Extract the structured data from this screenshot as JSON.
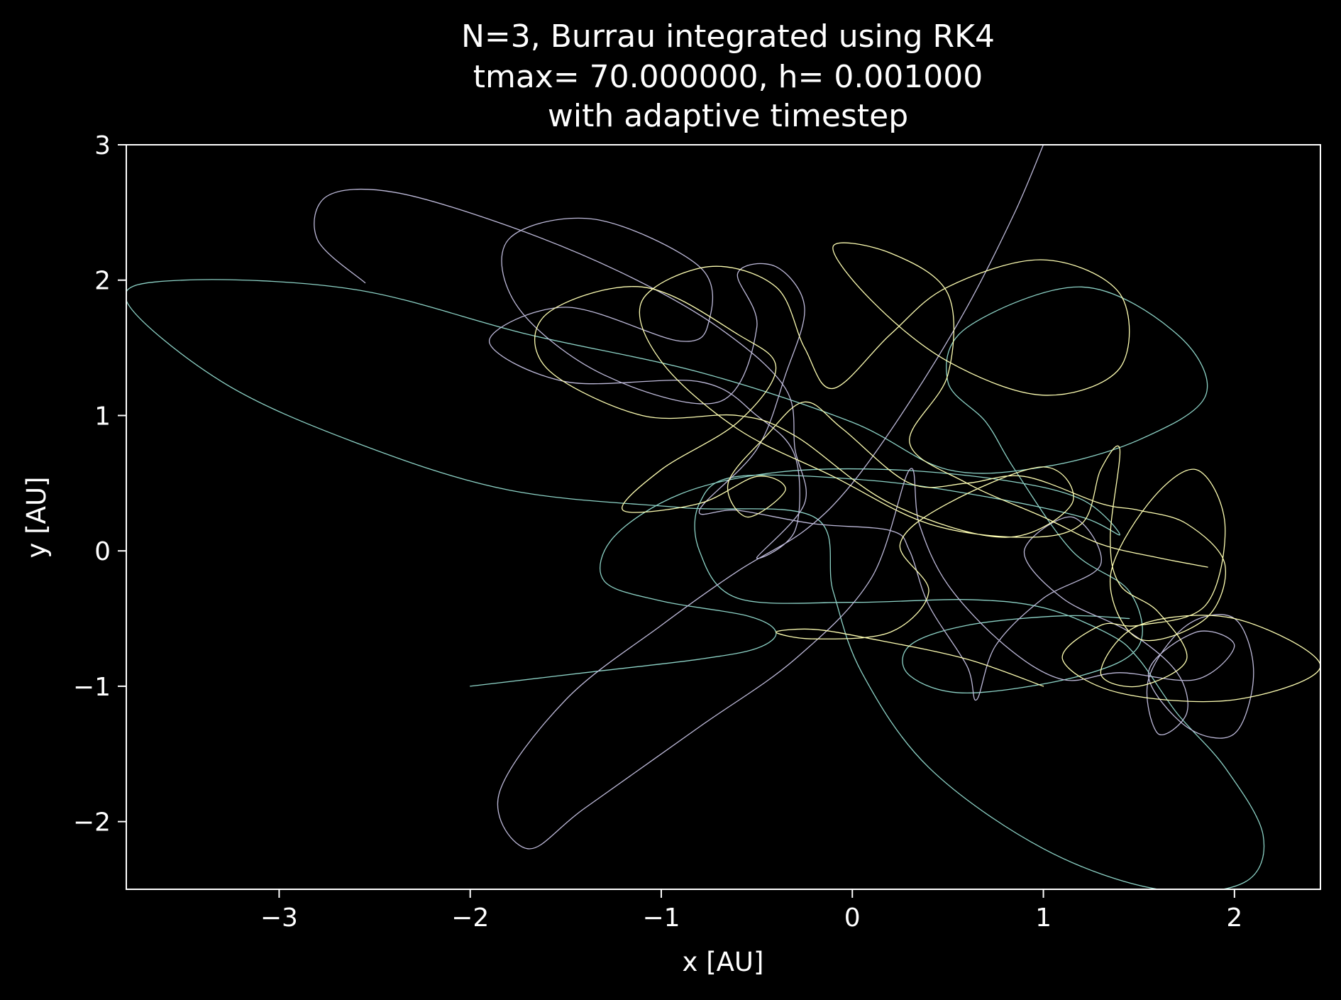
{
  "chart_data": {
    "type": "line",
    "title_lines": [
      "N=3, Burrau integrated using RK4",
      "tmax= 70.000000, h= 0.001000",
      "with adaptive timestep"
    ],
    "xlabel": "x [AU]",
    "ylabel": "y [AU]",
    "xlim": [
      -3.8,
      2.45
    ],
    "ylim": [
      -2.5,
      3.0
    ],
    "xticks": [
      -3,
      -2,
      -1,
      0,
      1,
      2
    ],
    "yticks": [
      -2,
      -1,
      0,
      1,
      2,
      3
    ],
    "xtick_labels": [
      "−3",
      "−2",
      "−1",
      "0",
      "1",
      "2"
    ],
    "ytick_labels": [
      "−2",
      "−1",
      "0",
      "1",
      "2",
      "3"
    ],
    "grid": false,
    "legend": "none",
    "background": "#000000",
    "foreground": "#ffffff",
    "series": [
      {
        "color": "#8dd3c7",
        "points": [
          [
            -2.0,
            -1.0
          ],
          [
            -1.4,
            -0.9
          ],
          [
            -0.8,
            -0.8
          ],
          [
            -0.5,
            -0.72
          ],
          [
            -0.4,
            -0.6
          ],
          [
            -0.55,
            -0.48
          ],
          [
            -1.0,
            -0.37
          ],
          [
            -1.3,
            -0.22
          ],
          [
            -1.25,
            0.1
          ],
          [
            -0.9,
            0.42
          ],
          [
            -0.4,
            0.58
          ],
          [
            0.2,
            0.6
          ],
          [
            0.8,
            0.52
          ],
          [
            1.2,
            0.38
          ],
          [
            1.4,
            0.12
          ],
          [
            1.2,
            0.25
          ],
          [
            0.7,
            0.4
          ],
          [
            0.1,
            0.52
          ],
          [
            -0.6,
            0.55
          ],
          [
            -0.8,
            0.35
          ],
          [
            -0.8,
            0.0
          ],
          [
            -0.6,
            -0.35
          ],
          [
            0.0,
            -0.38
          ],
          [
            0.6,
            -0.36
          ],
          [
            1.0,
            -0.42
          ],
          [
            1.35,
            -0.62
          ],
          [
            1.5,
            -0.8
          ],
          [
            1.7,
            -1.2
          ],
          [
            1.95,
            -1.6
          ],
          [
            2.15,
            -2.1
          ],
          [
            2.05,
            -2.45
          ],
          [
            1.6,
            -2.5
          ],
          [
            1.0,
            -2.2
          ],
          [
            0.4,
            -1.6
          ],
          [
            0.05,
            -0.9
          ],
          [
            -0.1,
            -0.3
          ],
          [
            -0.2,
            0.25
          ],
          [
            -0.9,
            0.32
          ],
          [
            -1.8,
            0.45
          ],
          [
            -2.6,
            0.8
          ],
          [
            -3.3,
            1.25
          ],
          [
            -3.8,
            1.85
          ],
          [
            -3.5,
            2.0
          ],
          [
            -2.6,
            1.93
          ],
          [
            -1.7,
            1.6
          ],
          [
            -0.8,
            1.32
          ],
          [
            0.0,
            0.95
          ],
          [
            0.5,
            0.6
          ],
          [
            1.0,
            0.62
          ],
          [
            1.5,
            0.82
          ],
          [
            1.85,
            1.15
          ],
          [
            1.7,
            1.6
          ],
          [
            1.2,
            1.95
          ],
          [
            0.6,
            1.65
          ],
          [
            0.5,
            1.25
          ],
          [
            0.7,
            0.95
          ],
          [
            0.85,
            0.6
          ],
          [
            1.15,
            0.0
          ],
          [
            1.45,
            -0.3
          ],
          [
            1.5,
            -0.7
          ],
          [
            1.2,
            -0.92
          ],
          [
            0.6,
            -1.05
          ],
          [
            0.3,
            -0.92
          ],
          [
            0.3,
            -0.7
          ],
          [
            0.6,
            -0.55
          ],
          [
            1.1,
            -0.48
          ],
          [
            1.45,
            -0.5
          ]
        ]
      },
      {
        "color": "#bebada",
        "points": [
          [
            -2.55,
            1.98
          ],
          [
            -2.8,
            2.3
          ],
          [
            -2.75,
            2.62
          ],
          [
            -2.4,
            2.65
          ],
          [
            -1.8,
            2.4
          ],
          [
            -1.2,
            2.05
          ],
          [
            -0.7,
            1.65
          ],
          [
            -0.35,
            1.2
          ],
          [
            -0.3,
            0.75
          ],
          [
            -0.25,
            0.35
          ],
          [
            -0.5,
            -0.05
          ],
          [
            -0.3,
            0.15
          ],
          [
            -0.3,
            0.7
          ],
          [
            -0.5,
            1.0
          ],
          [
            -0.8,
            1.25
          ],
          [
            -1.5,
            1.25
          ],
          [
            -1.9,
            1.55
          ],
          [
            -1.5,
            1.8
          ],
          [
            -0.9,
            1.55
          ],
          [
            -0.75,
            1.7
          ],
          [
            -0.8,
            2.1
          ],
          [
            -1.35,
            2.45
          ],
          [
            -1.8,
            2.3
          ],
          [
            -1.75,
            1.8
          ],
          [
            -1.3,
            1.3
          ],
          [
            -0.7,
            1.1
          ],
          [
            -0.5,
            1.65
          ],
          [
            -0.6,
            2.05
          ],
          [
            -0.4,
            2.1
          ],
          [
            -0.25,
            1.8
          ],
          [
            -0.35,
            1.3
          ],
          [
            -0.5,
            0.75
          ],
          [
            -0.8,
            0.3
          ],
          [
            -0.6,
            0.3
          ],
          [
            -0.2,
            0.2
          ],
          [
            0.2,
            0.15
          ],
          [
            0.3,
            0.0
          ],
          [
            0.4,
            -0.4
          ],
          [
            0.6,
            -0.85
          ],
          [
            0.65,
            -1.1
          ],
          [
            0.75,
            -0.7
          ],
          [
            1.0,
            -0.35
          ],
          [
            1.3,
            -0.1
          ],
          [
            1.15,
            0.25
          ],
          [
            0.9,
            0.0
          ],
          [
            1.1,
            -0.35
          ],
          [
            1.45,
            -0.6
          ],
          [
            1.7,
            -0.9
          ],
          [
            1.75,
            -1.2
          ],
          [
            1.6,
            -1.35
          ],
          [
            1.55,
            -0.95
          ],
          [
            1.75,
            -0.55
          ],
          [
            2.0,
            -0.5
          ],
          [
            2.1,
            -0.9
          ],
          [
            2.0,
            -1.35
          ],
          [
            1.75,
            -1.3
          ],
          [
            1.55,
            -0.9
          ],
          [
            1.8,
            -0.6
          ],
          [
            2.0,
            -0.7
          ],
          [
            1.8,
            -0.95
          ],
          [
            1.4,
            -0.9
          ],
          [
            1.1,
            -0.95
          ],
          [
            0.8,
            -0.7
          ],
          [
            0.5,
            -0.25
          ],
          [
            0.35,
            0.2
          ],
          [
            0.3,
            0.6
          ],
          [
            0.1,
            -0.2
          ],
          [
            -0.3,
            -0.8
          ],
          [
            -0.8,
            -1.3
          ],
          [
            -1.4,
            -1.9
          ],
          [
            -1.7,
            -2.2
          ],
          [
            -1.85,
            -1.8
          ],
          [
            -1.5,
            -1.1
          ],
          [
            -1.0,
            -0.55
          ],
          [
            -0.6,
            -0.15
          ],
          [
            -0.25,
            0.15
          ],
          [
            0.0,
            0.5
          ],
          [
            0.3,
            1.1
          ],
          [
            0.6,
            1.8
          ],
          [
            0.85,
            2.5
          ],
          [
            1.0,
            3.0
          ]
        ]
      },
      {
        "color": "#ffffb3",
        "points": [
          [
            1.0,
            -1.0
          ],
          [
            0.6,
            -0.8
          ],
          [
            0.1,
            -0.65
          ],
          [
            -0.2,
            -0.58
          ],
          [
            -0.4,
            -0.6
          ],
          [
            -0.2,
            -0.65
          ],
          [
            0.2,
            -0.6
          ],
          [
            0.4,
            -0.3
          ],
          [
            0.25,
            0.05
          ],
          [
            0.5,
            0.35
          ],
          [
            1.0,
            0.62
          ],
          [
            1.15,
            0.35
          ],
          [
            0.8,
            0.1
          ],
          [
            0.2,
            0.35
          ],
          [
            -0.3,
            0.85
          ],
          [
            -0.6,
            1.0
          ],
          [
            -1.1,
            1.0
          ],
          [
            -1.6,
            1.35
          ],
          [
            -1.6,
            1.75
          ],
          [
            -1.1,
            1.95
          ],
          [
            -0.6,
            1.6
          ],
          [
            -0.4,
            1.35
          ],
          [
            -0.6,
            0.95
          ],
          [
            -1.0,
            0.6
          ],
          [
            -1.2,
            0.3
          ],
          [
            -0.8,
            0.35
          ],
          [
            -0.5,
            0.55
          ],
          [
            -0.35,
            0.45
          ],
          [
            -0.55,
            0.25
          ],
          [
            -0.65,
            0.5
          ],
          [
            -0.45,
            0.85
          ],
          [
            -0.25,
            1.1
          ],
          [
            -0.05,
            0.9
          ],
          [
            0.3,
            0.5
          ],
          [
            0.6,
            0.5
          ],
          [
            0.9,
            0.55
          ],
          [
            1.3,
            0.35
          ],
          [
            1.5,
            0.3
          ],
          [
            1.75,
            0.2
          ],
          [
            1.95,
            -0.1
          ],
          [
            1.85,
            -0.5
          ],
          [
            1.5,
            -0.65
          ],
          [
            1.35,
            -0.2
          ],
          [
            1.55,
            0.35
          ],
          [
            1.8,
            0.6
          ],
          [
            1.95,
            0.2
          ],
          [
            1.85,
            -0.4
          ],
          [
            1.5,
            -0.55
          ],
          [
            1.3,
            -0.55
          ],
          [
            1.1,
            -0.8
          ],
          [
            1.4,
            -1.05
          ],
          [
            2.0,
            -1.1
          ],
          [
            2.45,
            -0.85
          ],
          [
            2.0,
            -0.5
          ],
          [
            1.5,
            -0.55
          ],
          [
            1.3,
            -0.9
          ],
          [
            1.5,
            -1.0
          ],
          [
            1.75,
            -0.8
          ],
          [
            1.6,
            -0.45
          ],
          [
            1.4,
            -0.25
          ],
          [
            1.35,
            0.1
          ],
          [
            1.4,
            0.75
          ],
          [
            1.3,
            0.6
          ],
          [
            1.2,
            0.2
          ],
          [
            0.9,
            0.1
          ],
          [
            0.4,
            0.2
          ],
          [
            -0.1,
            0.55
          ],
          [
            -0.6,
            0.9
          ],
          [
            -1.0,
            1.4
          ],
          [
            -1.1,
            1.85
          ],
          [
            -0.75,
            2.1
          ],
          [
            -0.4,
            1.95
          ],
          [
            -0.25,
            1.5
          ],
          [
            -0.1,
            1.2
          ],
          [
            0.2,
            1.6
          ],
          [
            0.5,
            1.95
          ],
          [
            1.0,
            2.15
          ],
          [
            1.4,
            1.9
          ],
          [
            1.4,
            1.35
          ],
          [
            1.0,
            1.15
          ],
          [
            0.5,
            1.4
          ],
          [
            0.1,
            1.85
          ],
          [
            -0.1,
            2.25
          ],
          [
            0.2,
            2.2
          ],
          [
            0.5,
            1.9
          ],
          [
            0.5,
            1.3
          ],
          [
            0.3,
            0.8
          ],
          [
            0.6,
            0.5
          ],
          [
            1.0,
            0.25
          ],
          [
            1.3,
            0.05
          ],
          [
            1.6,
            -0.05
          ],
          [
            1.86,
            -0.12
          ]
        ]
      }
    ]
  }
}
